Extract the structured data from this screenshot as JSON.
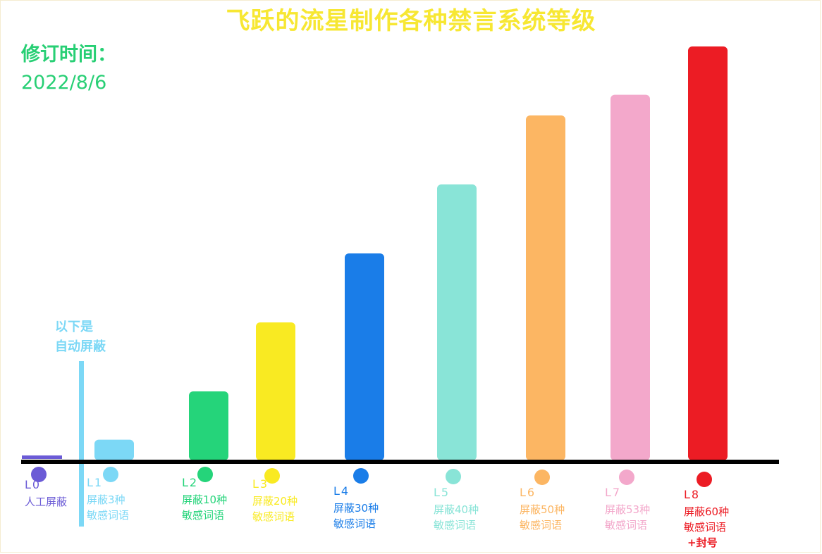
{
  "title": "飞跃的流星制作各种禁言系统等级",
  "revision": {
    "label": "修订时间：",
    "date": "2022/8/6"
  },
  "annotation": {
    "line1": "以下是",
    "line2": "自动屏蔽"
  },
  "chart_data": {
    "type": "bar",
    "title": "飞跃的流星制作各种禁言系统等级",
    "categories": [
      "L0",
      "L1",
      "L2",
      "L3",
      "L4",
      "L5",
      "L6",
      "L7",
      "L8"
    ],
    "values": [
      0,
      3,
      10,
      20,
      30,
      40,
      50,
      53,
      60
    ],
    "descriptions": [
      [
        "人工屏蔽"
      ],
      [
        "屏蔽3种",
        "敏感词语"
      ],
      [
        "屏蔽10种",
        "敏感词语"
      ],
      [
        "屏蔽20种",
        "敏感词语"
      ],
      [
        "屏蔽30种",
        "敏感词语"
      ],
      [
        "屏蔽40种",
        "敏感词语"
      ],
      [
        "屏蔽50种",
        "敏感词语"
      ],
      [
        "屏蔽53种",
        "敏感词语"
      ],
      [
        "屏蔽60种",
        "敏感词语",
        "+封号"
      ]
    ],
    "colors": [
      "#6b5bd6",
      "#7cd8f6",
      "#25d47a",
      "#f9ea22",
      "#1a7de8",
      "#89e4d7",
      "#fcb663",
      "#f3a8cb",
      "#ec1c24"
    ],
    "xlabel": "",
    "ylabel": "",
    "grid": false,
    "legend": "none"
  }
}
